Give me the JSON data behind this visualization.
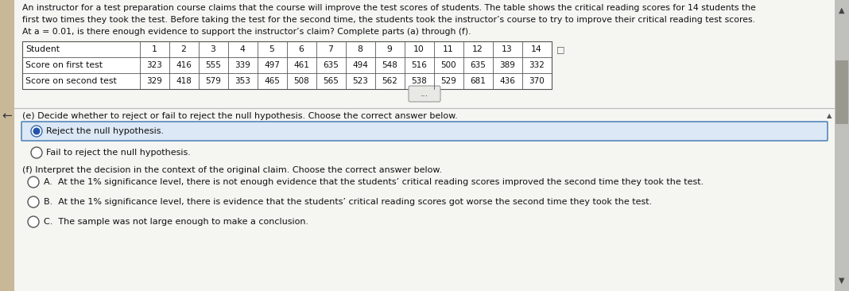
{
  "header_text_line1": "An instructor for a test preparation course claims that the course will improve the test scores of students. The table shows the critical reading scores for 14 students the",
  "header_text_line2": "first two times they took the test. Before taking the test for the second time, the students took the instructor’s course to try to improve their critical reading test scores.",
  "header_text_line3": "At a = 0.01, is there enough evidence to support the instructor’s claim? Complete parts (a) through (f).",
  "table_col_header": [
    "Student",
    "1",
    "2",
    "3",
    "4",
    "5",
    "6",
    "7",
    "8",
    "9",
    "10",
    "11",
    "12",
    "13",
    "14"
  ],
  "row1_label": "Score on first test",
  "row1_values": [
    "323",
    "416",
    "555",
    "339",
    "497",
    "461",
    "635",
    "494",
    "548",
    "516",
    "500",
    "635",
    "389",
    "332"
  ],
  "row2_label": "Score on second test",
  "row2_values": [
    "329",
    "418",
    "579",
    "353",
    "465",
    "508",
    "565",
    "523",
    "562",
    "538",
    "529",
    "681",
    "436",
    "370"
  ],
  "dots_text": "...",
  "part_e_label": "(e) Decide whether to reject or fail to reject the null hypothesis. Choose the correct answer below.",
  "option_reject_text": "Reject the null hypothesis.",
  "option_fail_text": "Fail to reject the null hypothesis.",
  "part_f_label": "(f) Interpret the decision in the context of the original claim. Choose the correct answer below.",
  "option_A_text": "A.  At the 1% significance level, there is not enough evidence that the students’ critical reading scores improved the second time they took the test.",
  "option_B_text": "B.  At the 1% significance level, there is evidence that the students’ critical reading scores got worse the second time they took the test.",
  "option_C_text": "C.  The sample was not large enough to make a conclusion.",
  "bg_color": "#e8e8e0",
  "panel_bg": "#f0f0ec",
  "white_bg": "#ffffff",
  "text_color": "#111111",
  "selected_box_fill": "#dce8f5",
  "selected_box_border": "#5588bb",
  "radio_fill_selected": "#2255aa",
  "radio_border": "#555555",
  "scroll_bg": "#c0c0bc",
  "scroll_thumb": "#999990",
  "left_tan_bar": "#c8b898",
  "divider_color": "#bbbbbb"
}
